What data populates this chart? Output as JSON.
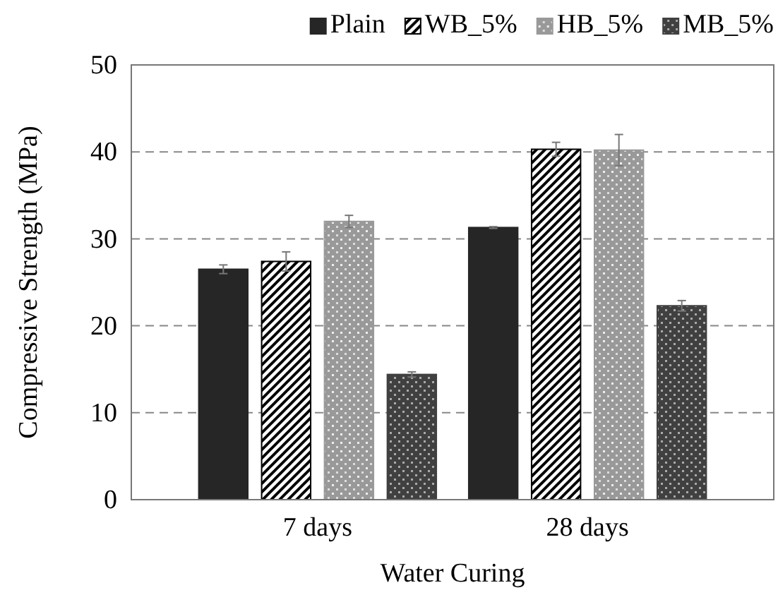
{
  "chart_data": {
    "type": "bar",
    "xlabel": "Water Curing",
    "ylabel": "Compressive Strength (MPa)",
    "categories": [
      "7 days",
      "28 days"
    ],
    "series": [
      {
        "name": "Plain",
        "color": "#262626",
        "values": [
          26.5,
          31.3
        ],
        "errors": [
          0.5,
          0.1
        ]
      },
      {
        "name": "WB_5%",
        "color": "#000000",
        "values": [
          27.4,
          40.3
        ],
        "errors": [
          1.1,
          0.8
        ]
      },
      {
        "name": "HB_5%",
        "color": "#999999",
        "values": [
          32.0,
          40.2
        ],
        "errors": [
          0.7,
          1.8
        ]
      },
      {
        "name": "MB_5%",
        "color": "#404040",
        "values": [
          14.4,
          22.3
        ],
        "errors": [
          0.3,
          0.6
        ]
      }
    ],
    "ylim": [
      0,
      50
    ],
    "yticks": [
      0,
      10,
      20,
      30,
      40,
      50
    ],
    "grid": "y",
    "legend": "top right"
  }
}
